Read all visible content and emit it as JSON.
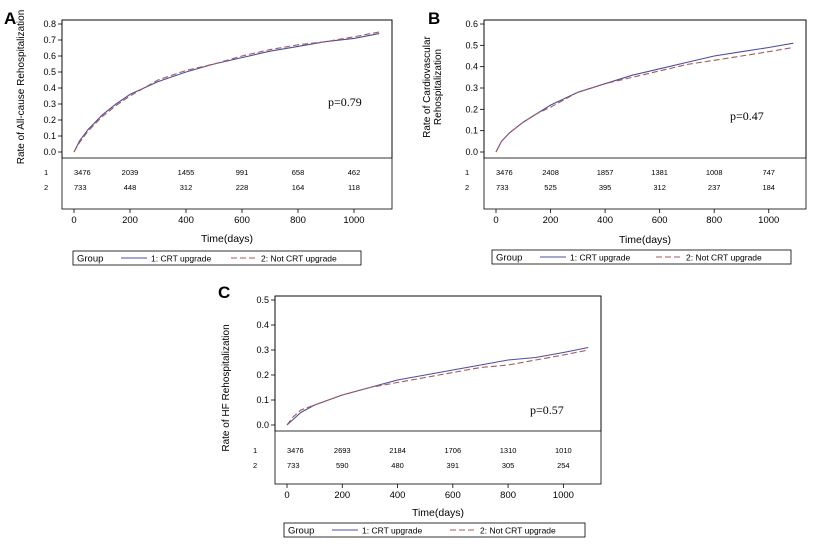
{
  "chart_data": [
    {
      "panel_letter": "A",
      "type": "line",
      "ylabel": "Rate of All-cause Rehospitalization",
      "xlabel": "Time(days)",
      "xlim": [
        0,
        1100
      ],
      "ylim": [
        0,
        0.8
      ],
      "yticks": [
        "0.0",
        "0.1",
        "0.2",
        "0.3",
        "0.4",
        "0.5",
        "0.6",
        "0.7",
        "0.8"
      ],
      "xticks": [
        "0",
        "200",
        "400",
        "600",
        "800",
        "1000"
      ],
      "annotation": "p=0.79",
      "series": [
        {
          "name": "1: CRT upgrade",
          "color": "#4a4f9e",
          "dash": "solid",
          "x": [
            0,
            20,
            50,
            100,
            150,
            200,
            300,
            400,
            500,
            600,
            700,
            800,
            900,
            1000,
            1090
          ],
          "y": [
            0.0,
            0.07,
            0.14,
            0.23,
            0.3,
            0.36,
            0.44,
            0.5,
            0.55,
            0.59,
            0.63,
            0.66,
            0.69,
            0.71,
            0.74
          ]
        },
        {
          "name": "2: Not CRT upgrade",
          "color": "#a85a5a",
          "dash": "dashed",
          "x": [
            0,
            20,
            50,
            100,
            150,
            200,
            300,
            400,
            500,
            600,
            700,
            800,
            900,
            1000,
            1090
          ],
          "y": [
            0.0,
            0.06,
            0.13,
            0.22,
            0.29,
            0.35,
            0.45,
            0.51,
            0.55,
            0.6,
            0.64,
            0.67,
            0.69,
            0.72,
            0.75
          ]
        }
      ],
      "risk_table": {
        "row_labels": [
          "1",
          "2"
        ],
        "x": [
          0,
          200,
          400,
          600,
          800,
          1000
        ],
        "rows": [
          [
            "3476",
            "2039",
            "1455",
            "991",
            "658",
            "462"
          ],
          [
            "733",
            "448",
            "312",
            "228",
            "164",
            "118"
          ]
        ]
      },
      "legend": {
        "title": "Group",
        "position": "bottom",
        "items": [
          "1: CRT upgrade",
          "2: Not CRT upgrade"
        ]
      }
    },
    {
      "panel_letter": "B",
      "type": "line",
      "ylabel": [
        "Rate of Cardiovascular",
        "Rehospitalization"
      ],
      "xlabel": "Time(days)",
      "xlim": [
        0,
        1100
      ],
      "ylim": [
        0,
        0.6
      ],
      "yticks": [
        "0.0",
        "0.1",
        "0.2",
        "0.3",
        "0.4",
        "0.5",
        "0.6"
      ],
      "xticks": [
        "0",
        "200",
        "400",
        "600",
        "800",
        "1000"
      ],
      "annotation": "p=0.47",
      "series": [
        {
          "name": "1: CRT upgrade",
          "color": "#4a4f9e",
          "dash": "solid",
          "x": [
            0,
            20,
            50,
            100,
            150,
            200,
            300,
            400,
            500,
            600,
            700,
            800,
            900,
            1000,
            1090
          ],
          "y": [
            0.0,
            0.05,
            0.09,
            0.14,
            0.18,
            0.22,
            0.28,
            0.32,
            0.36,
            0.39,
            0.42,
            0.45,
            0.47,
            0.49,
            0.51
          ]
        },
        {
          "name": "2: Not CRT upgrade",
          "color": "#a85a5a",
          "dash": "dashed",
          "x": [
            0,
            20,
            50,
            100,
            150,
            200,
            300,
            400,
            500,
            600,
            700,
            800,
            900,
            1000,
            1090
          ],
          "y": [
            0.0,
            0.05,
            0.09,
            0.14,
            0.18,
            0.21,
            0.28,
            0.32,
            0.35,
            0.38,
            0.41,
            0.43,
            0.45,
            0.47,
            0.49
          ]
        }
      ],
      "risk_table": {
        "row_labels": [
          "1",
          "2"
        ],
        "x": [
          0,
          200,
          400,
          600,
          800,
          1000
        ],
        "rows": [
          [
            "3476",
            "2408",
            "1857",
            "1381",
            "1008",
            "747"
          ],
          [
            "733",
            "525",
            "395",
            "312",
            "237",
            "184"
          ]
        ]
      },
      "legend": {
        "title": "Group",
        "position": "bottom",
        "items": [
          "1: CRT upgrade",
          "2: Not CRT upgrade"
        ]
      }
    },
    {
      "panel_letter": "C",
      "type": "line",
      "ylabel": "Rate of HF Rehospitalization",
      "xlabel": "Time(days)",
      "xlim": [
        0,
        1100
      ],
      "ylim": [
        0,
        0.5
      ],
      "yticks": [
        "0.0",
        "0.1",
        "0.2",
        "0.3",
        "0.4",
        "0.5"
      ],
      "xticks": [
        "0",
        "200",
        "400",
        "600",
        "800",
        "1000"
      ],
      "annotation": "p=0.57",
      "series": [
        {
          "name": "1: CRT upgrade",
          "color": "#4a4f9e",
          "dash": "solid",
          "x": [
            0,
            20,
            50,
            100,
            150,
            200,
            300,
            400,
            500,
            600,
            700,
            800,
            900,
            1000,
            1090
          ],
          "y": [
            0.0,
            0.02,
            0.05,
            0.08,
            0.1,
            0.12,
            0.15,
            0.18,
            0.2,
            0.22,
            0.24,
            0.26,
            0.27,
            0.29,
            0.31
          ]
        },
        {
          "name": "2: Not CRT upgrade",
          "color": "#a85a5a",
          "dash": "dashed",
          "x": [
            0,
            20,
            50,
            100,
            150,
            200,
            300,
            400,
            500,
            600,
            700,
            800,
            900,
            1000,
            1090
          ],
          "y": [
            0.0,
            0.03,
            0.06,
            0.08,
            0.1,
            0.12,
            0.15,
            0.17,
            0.19,
            0.21,
            0.23,
            0.24,
            0.26,
            0.28,
            0.3
          ]
        }
      ],
      "risk_table": {
        "row_labels": [
          "1",
          "2"
        ],
        "x": [
          0,
          200,
          400,
          600,
          800,
          1000
        ],
        "rows": [
          [
            "3476",
            "2693",
            "2184",
            "1706",
            "1310",
            "1010"
          ],
          [
            "733",
            "590",
            "480",
            "391",
            "305",
            "254"
          ]
        ]
      },
      "legend": {
        "title": "Group",
        "position": "bottom",
        "items": [
          "1: CRT upgrade",
          "2: Not CRT upgrade"
        ]
      }
    }
  ]
}
